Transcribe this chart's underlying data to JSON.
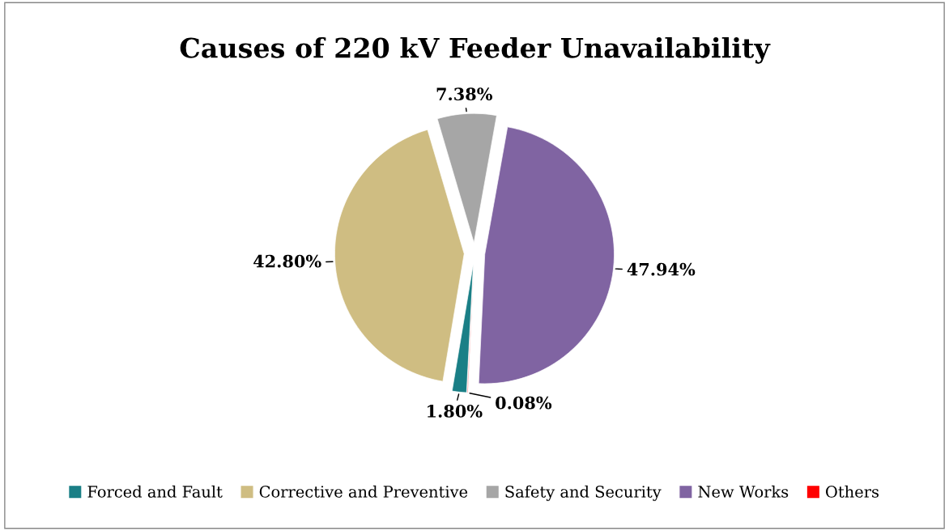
{
  "chart_data": {
    "type": "pie",
    "title": "Causes of 220 kV Feeder Unavailability",
    "categories": [
      "Forced and Fault",
      "Corrective and Preventive",
      "Safety and Security",
      "New Works",
      "Others"
    ],
    "values": [
      1.8,
      42.8,
      7.38,
      47.94,
      0.08
    ],
    "colors": [
      "#1a7f86",
      "#cfbd82",
      "#a6a6a6",
      "#8064a2",
      "#ff0000"
    ],
    "value_labels": [
      "1.80%",
      "42.80%",
      "7.38%",
      "47.94%",
      "0.08%"
    ],
    "legend": "bottom"
  }
}
